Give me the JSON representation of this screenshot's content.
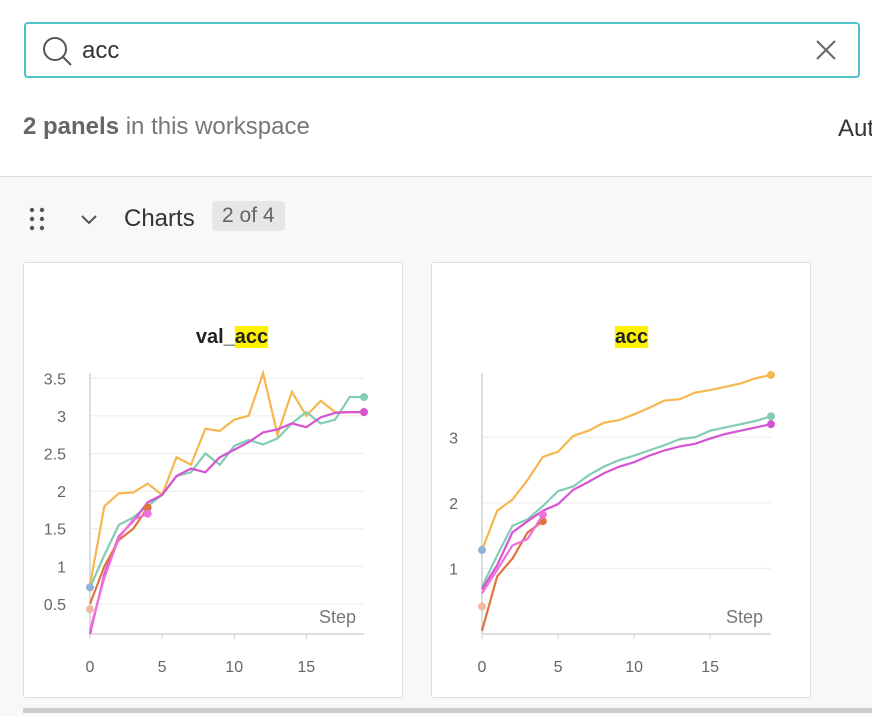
{
  "search": {
    "query": "acc"
  },
  "summary": {
    "count": "2 panels",
    "text": "in this workspace",
    "cut": "Aut"
  },
  "section": {
    "title": "Charts",
    "badge": "2 of 4"
  },
  "panels": [
    {
      "type": "line",
      "title": [
        {
          "text": "val_"
        },
        {
          "text": "acc",
          "highlight": true
        }
      ],
      "x_label": "Step",
      "xlim": [
        0,
        19
      ],
      "ylim": [
        0.1,
        3.57
      ],
      "xticks": [
        0,
        5,
        10,
        15
      ],
      "yticks": [
        0.5,
        1,
        1.5,
        2,
        2.5,
        3,
        3.5
      ],
      "grid": true,
      "x": [
        0,
        1,
        2,
        3,
        4,
        5,
        6,
        7,
        8,
        9,
        10,
        11,
        12,
        13,
        14,
        15,
        16,
        17,
        18,
        19
      ],
      "series": [
        {
          "color": "#f5b74e",
          "values": [
            0.75,
            1.8,
            1.97,
            1.98,
            2.1,
            1.95,
            2.45,
            2.35,
            2.83,
            2.8,
            2.95,
            3.0,
            3.57,
            2.75,
            3.32,
            3.0,
            3.2,
            3.05,
            3.05,
            3.05
          ]
        },
        {
          "color": "#84cdb4",
          "values": [
            0.72,
            1.15,
            1.55,
            1.65,
            1.8,
            1.95,
            2.2,
            2.25,
            2.5,
            2.35,
            2.6,
            2.68,
            2.62,
            2.7,
            2.9,
            3.05,
            2.9,
            2.95,
            3.25,
            3.25
          ]
        },
        {
          "color": "#d653d3",
          "values": [
            0.1,
            0.9,
            1.4,
            1.6,
            1.85,
            1.95,
            2.2,
            2.3,
            2.25,
            2.45,
            2.55,
            2.65,
            2.78,
            2.82,
            2.9,
            2.85,
            2.98,
            3.04,
            3.05,
            3.05
          ]
        },
        {
          "color": "#e0743e",
          "values": [
            0.5,
            1.0,
            1.35,
            1.5,
            1.78,
            null,
            null,
            null,
            null,
            null,
            null,
            null,
            null,
            null,
            null,
            null,
            null,
            null,
            null,
            null
          ]
        },
        {
          "color": "#ef6fdc",
          "values": [
            0.15,
            0.85,
            1.38,
            1.62,
            1.7,
            null,
            null,
            null,
            null,
            null,
            null,
            null,
            null,
            null,
            null,
            null,
            null,
            null,
            null,
            null
          ]
        },
        {
          "color": "#8fb4d8",
          "values": [
            0.72,
            null,
            null,
            null,
            null,
            null,
            null,
            null,
            null,
            null,
            null,
            null,
            null,
            null,
            null,
            null,
            null,
            null,
            null,
            null
          ]
        },
        {
          "color": "#f2b9a0",
          "values": [
            0.43,
            null,
            null,
            null,
            null,
            null,
            null,
            null,
            null,
            null,
            null,
            null,
            null,
            null,
            null,
            null,
            null,
            null,
            null,
            null
          ]
        }
      ]
    },
    {
      "type": "line",
      "title": [
        {
          "text": "acc",
          "highlight": true
        }
      ],
      "x_label": "Step",
      "xlim": [
        0,
        19
      ],
      "ylim": [
        0,
        3.98
      ],
      "xticks": [
        0,
        5,
        10,
        15
      ],
      "yticks": [
        1,
        2,
        3
      ],
      "grid": true,
      "x": [
        0,
        1,
        2,
        3,
        4,
        5,
        6,
        7,
        8,
        9,
        10,
        11,
        12,
        13,
        14,
        15,
        16,
        17,
        18,
        19
      ],
      "series": [
        {
          "color": "#f5b74e",
          "values": [
            1.28,
            1.88,
            2.05,
            2.35,
            2.7,
            2.78,
            3.02,
            3.1,
            3.22,
            3.26,
            3.35,
            3.45,
            3.56,
            3.58,
            3.68,
            3.72,
            3.77,
            3.82,
            3.9,
            3.95
          ]
        },
        {
          "color": "#84cdb4",
          "values": [
            0.72,
            1.2,
            1.65,
            1.75,
            1.95,
            2.18,
            2.25,
            2.42,
            2.55,
            2.65,
            2.72,
            2.8,
            2.88,
            2.97,
            3.0,
            3.1,
            3.15,
            3.2,
            3.25,
            3.32
          ]
        },
        {
          "color": "#d653d3",
          "values": [
            0.68,
            1.05,
            1.55,
            1.72,
            1.88,
            1.98,
            2.2,
            2.32,
            2.45,
            2.55,
            2.62,
            2.72,
            2.8,
            2.86,
            2.9,
            2.98,
            3.05,
            3.1,
            3.15,
            3.2
          ]
        },
        {
          "color": "#e0743e",
          "values": [
            0.05,
            0.88,
            1.15,
            1.55,
            1.72,
            null,
            null,
            null,
            null,
            null,
            null,
            null,
            null,
            null,
            null,
            null,
            null,
            null,
            null,
            null
          ]
        },
        {
          "color": "#ef6fdc",
          "values": [
            0.62,
            0.98,
            1.35,
            1.45,
            1.82,
            null,
            null,
            null,
            null,
            null,
            null,
            null,
            null,
            null,
            null,
            null,
            null,
            null,
            null,
            null
          ]
        },
        {
          "color": "#8fb4d8",
          "values": [
            1.28,
            null,
            null,
            null,
            null,
            null,
            null,
            null,
            null,
            null,
            null,
            null,
            null,
            null,
            null,
            null,
            null,
            null,
            null,
            null
          ]
        },
        {
          "color": "#f2b9a0",
          "values": [
            0.42,
            null,
            null,
            null,
            null,
            null,
            null,
            null,
            null,
            null,
            null,
            null,
            null,
            null,
            null,
            null,
            null,
            null,
            null,
            null
          ]
        }
      ]
    }
  ]
}
